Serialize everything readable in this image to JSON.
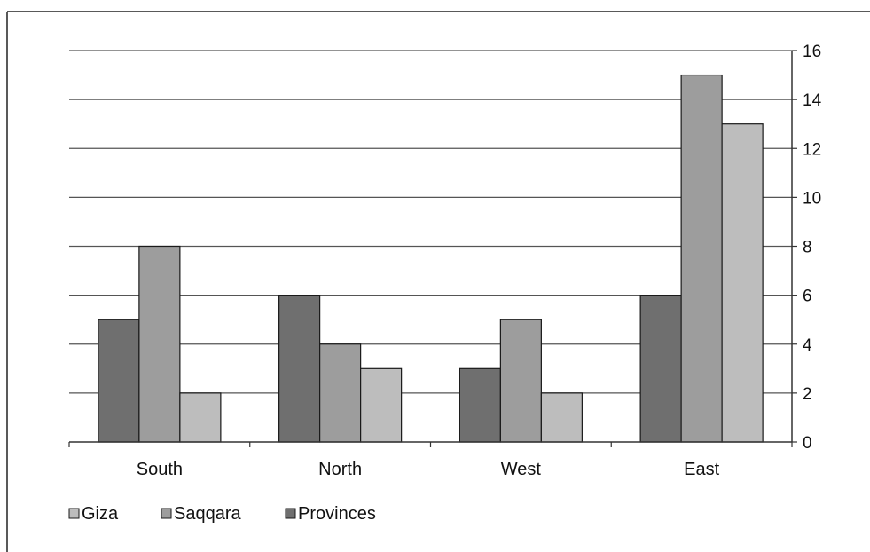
{
  "chart_data": {
    "type": "bar",
    "categories": [
      "South",
      "North",
      "West",
      "East"
    ],
    "series": [
      {
        "name": "Provinces",
        "values": [
          5,
          6,
          3,
          6
        ],
        "color": "#6f6f6f"
      },
      {
        "name": "Saqqara",
        "values": [
          8,
          4,
          5,
          15
        ],
        "color": "#9d9d9d"
      },
      {
        "name": "Giza",
        "values": [
          2,
          3,
          2,
          13
        ],
        "color": "#bdbdbd"
      }
    ],
    "legend_order": [
      "Giza",
      "Saqqara",
      "Provinces"
    ],
    "title": "",
    "xlabel": "",
    "ylabel": "",
    "ylim": [
      0,
      16
    ],
    "yticks": [
      "0",
      "2",
      "4",
      "6",
      "8",
      "10",
      "12",
      "14",
      "16"
    ],
    "y_axis_side": "right",
    "grid": true,
    "legend_position": "bottom-left"
  }
}
